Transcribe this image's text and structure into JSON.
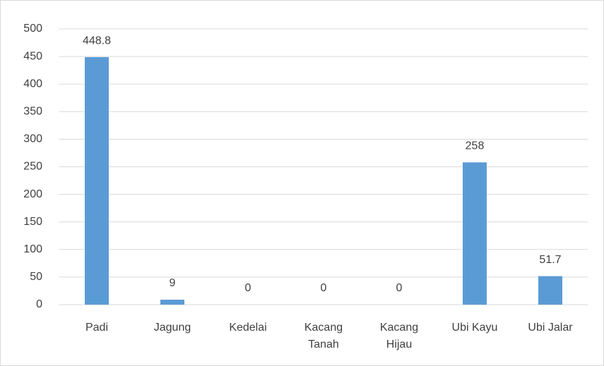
{
  "chart_data": {
    "type": "bar",
    "categories": [
      "Padi",
      "Jagung",
      "Kedelai",
      "Kacang Tanah",
      "Kacang Hijau",
      "Ubi Kayu",
      "Ubi Jalar"
    ],
    "values": [
      448.8,
      9,
      0,
      0,
      0,
      258,
      51.7
    ],
    "color": "#5b9bd5",
    "ylim": [
      0,
      500
    ],
    "yticks": [
      0,
      50,
      100,
      150,
      200,
      250,
      300,
      350,
      400,
      450,
      500
    ],
    "grid": true
  }
}
